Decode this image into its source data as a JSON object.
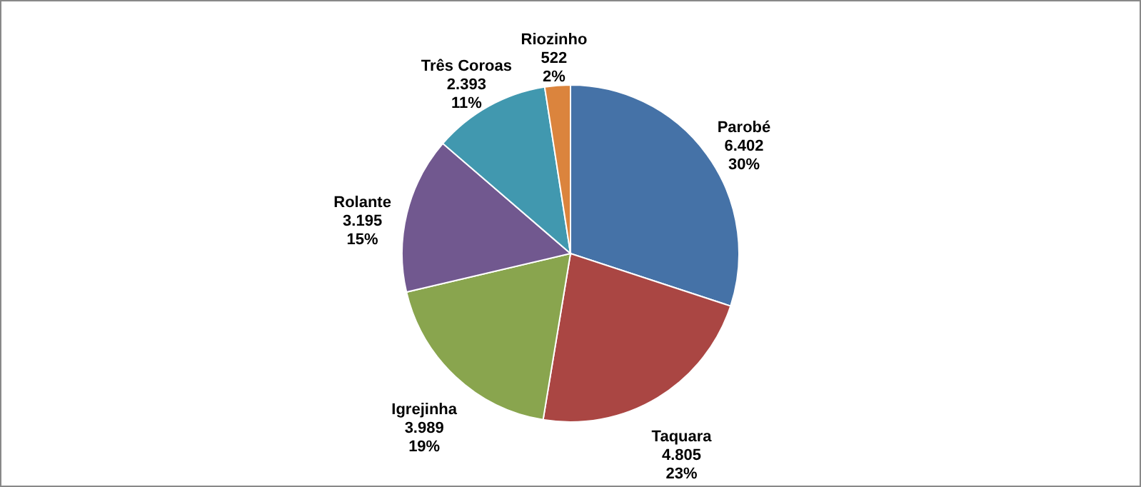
{
  "chart_data": {
    "type": "pie",
    "categories": [
      "Parobé",
      "Taquara",
      "Igrejinha",
      "Rolante",
      "Três Coroas",
      "Riozinho"
    ],
    "values": [
      6402,
      4805,
      3989,
      3195,
      2393,
      522
    ],
    "value_labels": [
      "6.402\n30%",
      "4.805\n23%",
      "3.989\n19%",
      "3.195\n15%",
      "2.393\n11%",
      "522\n2%"
    ],
    "colors": [
      "#4572a7",
      "#aa4643",
      "#89a54e",
      "#71588f",
      "#4198af",
      "#db843d"
    ]
  }
}
